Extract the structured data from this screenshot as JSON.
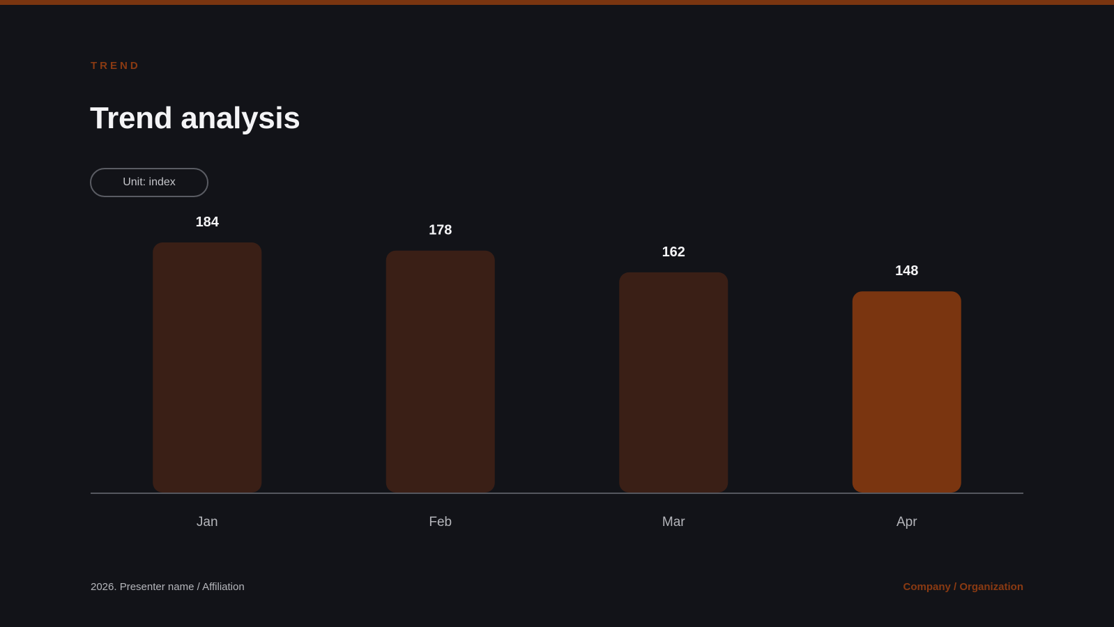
{
  "slide": {
    "eyebrow": "TREND",
    "title": "Trend analysis",
    "unit_label": "Unit: index"
  },
  "footer": {
    "left": "2026. Presenter name / Affiliation",
    "right": "Company / Organization"
  },
  "colors": {
    "accent": "#7a3510",
    "bar_muted": "#3a1f16",
    "bar_highlight": "#7a3510",
    "background": "#121318"
  },
  "chart_data": {
    "type": "bar",
    "categories": [
      "Jan",
      "Feb",
      "Mar",
      "Apr"
    ],
    "values": [
      184,
      178,
      162,
      148
    ],
    "highlight_index": 3,
    "title": "",
    "xlabel": "",
    "ylabel": "",
    "ylim": [
      0,
      184
    ],
    "grid": false,
    "legend": "none"
  }
}
